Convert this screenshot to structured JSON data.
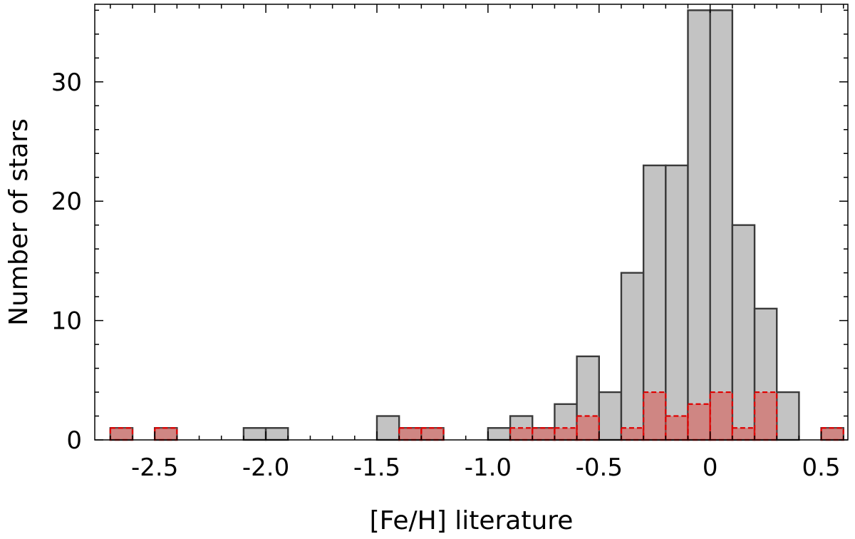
{
  "chart_data": {
    "type": "bar",
    "title": "",
    "xlabel": "[Fe/H] literature",
    "ylabel": "Number of stars",
    "xlim": [
      -2.77,
      0.62
    ],
    "ylim": [
      0,
      36.5
    ],
    "bin_width": 0.1,
    "x_ticks": [
      {
        "value": -2.5,
        "label": "-2.5"
      },
      {
        "value": -2.0,
        "label": "-2.0"
      },
      {
        "value": -1.5,
        "label": "-1.5"
      },
      {
        "value": -1.0,
        "label": "-1.0"
      },
      {
        "value": -0.5,
        "label": "-0.5"
      },
      {
        "value": 0.0,
        "label": "0"
      },
      {
        "value": 0.5,
        "label": "0.5"
      }
    ],
    "y_ticks": [
      {
        "value": 0,
        "label": "0"
      },
      {
        "value": 10,
        "label": "10"
      },
      {
        "value": 20,
        "label": "20"
      },
      {
        "value": 30,
        "label": "30"
      }
    ],
    "grid": false,
    "series": [
      {
        "style": "gray filled, solid black outline",
        "color": "#c0c0c0",
        "edge_color": "#000000",
        "bins": [
          {
            "x": -2.7,
            "count": 1
          },
          {
            "x": -2.5,
            "count": 1
          },
          {
            "x": -2.1,
            "count": 1
          },
          {
            "x": -2.0,
            "count": 1
          },
          {
            "x": -1.5,
            "count": 2
          },
          {
            "x": -1.4,
            "count": 1
          },
          {
            "x": -1.3,
            "count": 1
          },
          {
            "x": -1.0,
            "count": 1
          },
          {
            "x": -0.9,
            "count": 2
          },
          {
            "x": -0.8,
            "count": 1
          },
          {
            "x": -0.7,
            "count": 3
          },
          {
            "x": -0.6,
            "count": 7
          },
          {
            "x": -0.5,
            "count": 4
          },
          {
            "x": -0.4,
            "count": 14
          },
          {
            "x": -0.3,
            "count": 23
          },
          {
            "x": -0.2,
            "count": 23
          },
          {
            "x": -0.1,
            "count": 36
          },
          {
            "x": 0.0,
            "count": 36
          },
          {
            "x": 0.1,
            "count": 18
          },
          {
            "x": 0.2,
            "count": 11
          },
          {
            "x": 0.3,
            "count": 4
          },
          {
            "x": 0.5,
            "count": 1
          }
        ]
      },
      {
        "style": "translucent red filled, dashed red outline",
        "color": "#d9534f",
        "edge_color": "#e00000",
        "bins": [
          {
            "x": -2.7,
            "count": 1
          },
          {
            "x": -2.5,
            "count": 1
          },
          {
            "x": -1.4,
            "count": 1
          },
          {
            "x": -1.3,
            "count": 1
          },
          {
            "x": -0.9,
            "count": 1
          },
          {
            "x": -0.8,
            "count": 1
          },
          {
            "x": -0.7,
            "count": 1
          },
          {
            "x": -0.6,
            "count": 2
          },
          {
            "x": -0.4,
            "count": 1
          },
          {
            "x": -0.3,
            "count": 4
          },
          {
            "x": -0.2,
            "count": 2
          },
          {
            "x": -0.1,
            "count": 3
          },
          {
            "x": 0.0,
            "count": 4
          },
          {
            "x": 0.1,
            "count": 1
          },
          {
            "x": 0.2,
            "count": 4
          },
          {
            "x": 0.5,
            "count": 1
          }
        ]
      }
    ]
  }
}
